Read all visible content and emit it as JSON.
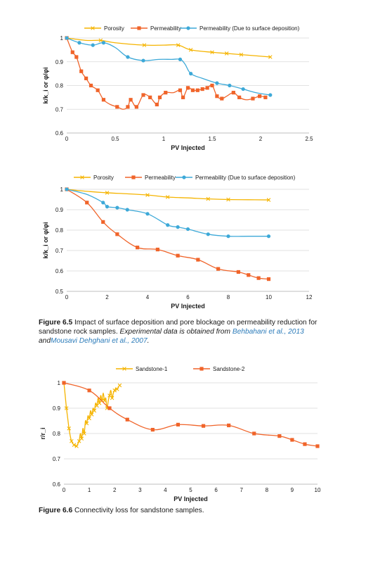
{
  "chart_data": [
    {
      "type": "line",
      "xlabel": "PV Injected",
      "ylabel": "k/k_i or φ/φi",
      "xlim": [
        0,
        2.5
      ],
      "ylim": [
        0.6,
        1.0
      ],
      "x_ticks": [
        0,
        0.5,
        1,
        1.5,
        2,
        2.5
      ],
      "x_tick_labels": [
        "0",
        "0.5",
        "1",
        "1.5",
        "2",
        "2.5"
      ],
      "y_ticks": [
        0.6,
        0.7,
        0.8,
        0.9,
        1.0
      ],
      "y_tick_labels": [
        "0.6",
        "0.7",
        "0.8",
        "0.9",
        "1"
      ],
      "legend_position": "top",
      "grid": "horizontal",
      "series": [
        {
          "name": "Porosity",
          "color": "#f5b400",
          "marker": "x",
          "x": [
            0,
            0.2,
            0.35,
            0.5,
            0.8,
            1.0,
            1.15,
            1.28,
            1.5,
            1.65,
            1.8,
            2.1
          ],
          "y": [
            1.0,
            0.99,
            0.99,
            0.98,
            0.97,
            0.97,
            0.97,
            0.95,
            0.94,
            0.935,
            0.93,
            0.92
          ],
          "marked": [
            true,
            false,
            true,
            false,
            true,
            false,
            true,
            true,
            true,
            true,
            true,
            true
          ]
        },
        {
          "name": "Permeability",
          "color": "#f0642a",
          "marker": "square",
          "x": [
            0,
            0.06,
            0.1,
            0.15,
            0.2,
            0.25,
            0.32,
            0.38,
            0.45,
            0.52,
            0.58,
            0.63,
            0.66,
            0.72,
            0.79,
            0.86,
            0.93,
            0.96,
            1.02,
            1.1,
            1.17,
            1.2,
            1.25,
            1.3,
            1.35,
            1.4,
            1.45,
            1.5,
            1.55,
            1.6,
            1.65,
            1.72,
            1.78,
            1.85,
            1.92,
            1.99,
            2.05
          ],
          "y": [
            1.0,
            0.94,
            0.92,
            0.86,
            0.83,
            0.8,
            0.78,
            0.74,
            0.72,
            0.71,
            0.7,
            0.71,
            0.74,
            0.71,
            0.76,
            0.75,
            0.72,
            0.75,
            0.77,
            0.77,
            0.78,
            0.75,
            0.79,
            0.78,
            0.78,
            0.785,
            0.79,
            0.8,
            0.755,
            0.745,
            0.755,
            0.77,
            0.75,
            0.74,
            0.745,
            0.755,
            0.75
          ],
          "marked": [
            true,
            true,
            true,
            true,
            true,
            true,
            true,
            true,
            false,
            true,
            false,
            true,
            true,
            true,
            true,
            true,
            true,
            true,
            true,
            false,
            true,
            true,
            true,
            true,
            true,
            true,
            true,
            true,
            true,
            true,
            false,
            true,
            true,
            false,
            true,
            true,
            true
          ]
        },
        {
          "name": "Permeability (Due to surface deposition)",
          "color": "#3da9d8",
          "marker": "circle",
          "x": [
            0,
            0.13,
            0.27,
            0.38,
            0.5,
            0.63,
            0.79,
            0.95,
            1.08,
            1.17,
            1.22,
            1.28,
            1.4,
            1.55,
            1.68,
            1.82,
            1.95,
            2.1
          ],
          "y": [
            1.0,
            0.98,
            0.97,
            0.98,
            0.96,
            0.92,
            0.905,
            0.91,
            0.91,
            0.91,
            0.89,
            0.85,
            0.83,
            0.81,
            0.8,
            0.785,
            0.77,
            0.76
          ],
          "marked": [
            true,
            true,
            true,
            true,
            false,
            true,
            true,
            false,
            false,
            true,
            false,
            true,
            false,
            true,
            true,
            true,
            false,
            true
          ]
        }
      ]
    },
    {
      "type": "line",
      "xlabel": "PV Injected",
      "ylabel": "k/k_i or φ/φi",
      "xlim": [
        0,
        12
      ],
      "ylim": [
        0.5,
        1.0
      ],
      "x_ticks": [
        0,
        2,
        4,
        6,
        8,
        10,
        12
      ],
      "x_tick_labels": [
        "0",
        "2",
        "4",
        "6",
        "8",
        "10",
        "12"
      ],
      "y_ticks": [
        0.5,
        0.6,
        0.7,
        0.8,
        0.9,
        1.0
      ],
      "y_tick_labels": [
        "0.5",
        "0.6",
        "0.7",
        "0.8",
        "0.9",
        "1"
      ],
      "legend_position": "top",
      "grid": "horizontal",
      "series": [
        {
          "name": "Porosity",
          "color": "#f5b400",
          "marker": "x",
          "x": [
            0,
            1,
            2,
            3,
            4,
            5,
            6,
            7,
            8,
            9,
            10
          ],
          "y": [
            1.0,
            0.99,
            0.983,
            0.978,
            0.972,
            0.962,
            0.958,
            0.953,
            0.95,
            0.949,
            0.948
          ],
          "marked": [
            true,
            false,
            true,
            false,
            true,
            true,
            false,
            true,
            true,
            false,
            true
          ]
        },
        {
          "name": "Permeability",
          "color": "#f0642a",
          "marker": "square",
          "x": [
            0,
            1,
            1.8,
            2.5,
            3.5,
            4.5,
            5.5,
            6.5,
            7.5,
            8.5,
            9,
            9.5,
            10
          ],
          "y": [
            1.0,
            0.935,
            0.84,
            0.78,
            0.715,
            0.705,
            0.675,
            0.655,
            0.61,
            0.595,
            0.58,
            0.565,
            0.56
          ],
          "marked": [
            true,
            true,
            true,
            true,
            true,
            true,
            true,
            true,
            true,
            true,
            true,
            true,
            true
          ]
        },
        {
          "name": "Permeability (Due to surface deposition)",
          "color": "#3da9d8",
          "marker": "circle",
          "x": [
            0,
            1,
            1.8,
            2,
            2.5,
            3,
            4,
            5,
            5.5,
            6,
            7,
            8,
            9,
            10
          ],
          "y": [
            1.0,
            0.975,
            0.935,
            0.915,
            0.91,
            0.9,
            0.88,
            0.825,
            0.815,
            0.805,
            0.78,
            0.77,
            0.77,
            0.77
          ],
          "marked": [
            true,
            false,
            true,
            true,
            true,
            true,
            true,
            true,
            true,
            true,
            true,
            true,
            false,
            true
          ]
        }
      ]
    },
    {
      "type": "line",
      "xlabel": "PV Injected",
      "ylabel": "r/r_i",
      "xlim": [
        0,
        10
      ],
      "ylim": [
        0.6,
        1.0
      ],
      "x_ticks": [
        0,
        1,
        2,
        3,
        4,
        5,
        6,
        7,
        8,
        9,
        10
      ],
      "x_tick_labels": [
        "0",
        "1",
        "2",
        "3",
        "4",
        "5",
        "6",
        "7",
        "8",
        "9",
        "10"
      ],
      "y_ticks": [
        0.6,
        0.7,
        0.8,
        0.9,
        1.0
      ],
      "y_tick_labels": [
        "0.6",
        "0.7",
        "0.8",
        "0.9",
        "1"
      ],
      "legend_position": "top",
      "grid": "horizontal",
      "series": [
        {
          "name": "Sandstone-1",
          "color": "#f5b400",
          "marker": "x",
          "x": [
            0,
            0.05,
            0.1,
            0.15,
            0.2,
            0.25,
            0.3,
            0.35,
            0.4,
            0.45,
            0.5,
            0.55,
            0.6,
            0.65,
            0.7,
            0.75,
            0.8,
            0.85,
            0.9,
            0.95,
            1.0,
            1.05,
            1.1,
            1.15,
            1.2,
            1.25,
            1.3,
            1.35,
            1.4,
            1.45,
            1.5,
            1.55,
            1.6,
            1.65,
            1.7,
            1.75,
            1.8,
            1.85,
            1.9,
            1.95,
            2.0,
            2.05,
            2.1,
            2.15,
            2.2
          ],
          "y": [
            1.0,
            0.95,
            0.9,
            0.86,
            0.82,
            0.79,
            0.77,
            0.76,
            0.755,
            0.75,
            0.75,
            0.76,
            0.77,
            0.8,
            0.78,
            0.82,
            0.8,
            0.85,
            0.84,
            0.87,
            0.86,
            0.89,
            0.875,
            0.9,
            0.89,
            0.92,
            0.91,
            0.94,
            0.92,
            0.95,
            0.93,
            0.96,
            0.93,
            0.94,
            0.9,
            0.93,
            0.95,
            0.97,
            0.94,
            0.96,
            0.97,
            0.98,
            0.975,
            0.985,
            0.99
          ],
          "marked": [
            true,
            false,
            true,
            false,
            true,
            false,
            true,
            false,
            true,
            false,
            true,
            false,
            true,
            false,
            true,
            false,
            true,
            false,
            true,
            false,
            true,
            false,
            true,
            false,
            true,
            false,
            true,
            false,
            true,
            false,
            true,
            false,
            true,
            false,
            true,
            false,
            true,
            false,
            true,
            false,
            true,
            false,
            true,
            false,
            true
          ]
        },
        {
          "name": "Sandstone-2",
          "color": "#f0642a",
          "marker": "square",
          "x": [
            0,
            1,
            1.8,
            2.5,
            3.5,
            4.5,
            5.5,
            6.5,
            7.5,
            8.5,
            9,
            9.5,
            10
          ],
          "y": [
            1.0,
            0.97,
            0.9,
            0.855,
            0.815,
            0.835,
            0.83,
            0.832,
            0.8,
            0.79,
            0.775,
            0.758,
            0.75
          ],
          "marked": [
            true,
            true,
            true,
            true,
            true,
            true,
            true,
            true,
            true,
            true,
            true,
            true,
            true
          ]
        }
      ]
    }
  ],
  "captions": [
    {
      "label": "Figure 6.5",
      "text": "Impact of surface deposition and pore blockage on permeability reduction for sandstone rock samples.",
      "note": "Experimental data is obtained from",
      "ref1": "Behbahani et al., 2013",
      "and": "and",
      "ref2": "Mousavi Dehghani et al., 2007",
      "end": "."
    },
    {
      "label": "Figure 6.6",
      "text": "Connectivity loss for sandstone samples."
    }
  ]
}
